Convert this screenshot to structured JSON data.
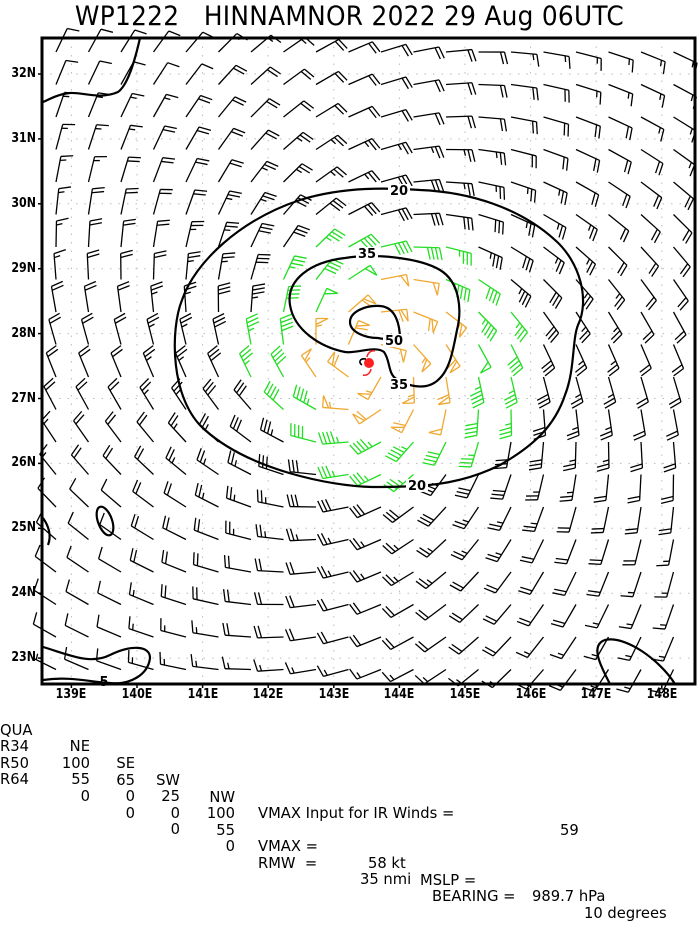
{
  "title": "WP1222   HINNAMNOR 2022 29 Aug 06UTC",
  "chart_data": {
    "type": "wind_barb_map",
    "title": "WP1222 HINNAMNOR 2022 29 Aug 06UTC",
    "storm_id": "WP1222",
    "storm_name": "HINNAMNOR",
    "year": 2022,
    "date": "29 Aug",
    "time": "06UTC",
    "xlabel": "Longitude",
    "ylabel": "Latitude",
    "x_ticks": [
      "139E",
      "140E",
      "141E",
      "142E",
      "143E",
      "144E",
      "145E",
      "146E",
      "147E",
      "148E"
    ],
    "y_ticks": [
      "32N",
      "31N",
      "30N",
      "29N",
      "28N",
      "27N",
      "26N",
      "25N",
      "24N",
      "23N"
    ],
    "xlim": [
      138.54,
      148.52
    ],
    "ylim": [
      22.6,
      32.55
    ],
    "grid": "dotted",
    "storm_center": {
      "lon": 143.55,
      "lat": 27.55,
      "symbol": "tropical-storm-icon",
      "color": "#ff2020"
    },
    "contours": [
      {
        "level": 20,
        "label": "20"
      },
      {
        "level": 35,
        "label": "35"
      },
      {
        "level": 50,
        "label": "50"
      },
      {
        "level": 5,
        "label": "5"
      }
    ],
    "barb_colors": {
      "below_34kt": "#000000",
      "34_to_50kt": "#22dd22",
      "50_to_64kt": "#f0a830",
      "above_64kt": "#f07020"
    }
  },
  "axes": {
    "y_labels": [
      {
        "text": "32N",
        "lat": 32
      },
      {
        "text": "31N",
        "lat": 31
      },
      {
        "text": "30N",
        "lat": 30
      },
      {
        "text": "29N",
        "lat": 29
      },
      {
        "text": "28N",
        "lat": 28
      },
      {
        "text": "27N",
        "lat": 27
      },
      {
        "text": "26N",
        "lat": 26
      },
      {
        "text": "25N",
        "lat": 25
      },
      {
        "text": "24N",
        "lat": 24
      },
      {
        "text": "23N",
        "lat": 23
      }
    ],
    "x_labels": [
      {
        "text": "139E",
        "lon": 139
      },
      {
        "text": "140E",
        "lon": 140
      },
      {
        "text": "141E",
        "lon": 141
      },
      {
        "text": "142E",
        "lon": 142
      },
      {
        "text": "143E",
        "lon": 143
      },
      {
        "text": "144E",
        "lon": 144
      },
      {
        "text": "145E",
        "lon": 145
      },
      {
        "text": "146E",
        "lon": 146
      },
      {
        "text": "147E",
        "lon": 147
      },
      {
        "text": "148E",
        "lon": 148
      }
    ]
  },
  "info": {
    "header": {
      "qua": "QUA",
      "ne": "NE",
      "se": "SE",
      "sw": "SW",
      "nw": "NW"
    },
    "r34": {
      "label": "R34",
      "ne": "100",
      "se": "65",
      "sw": "25",
      "nw": "100"
    },
    "r50": {
      "label": "R50",
      "ne": "55",
      "se": "0",
      "sw": "0",
      "nw": "55"
    },
    "r64": {
      "label": "R64",
      "ne": "0",
      "se": "0",
      "sw": "0",
      "nw": "0"
    },
    "vmax_input_text": "VMAX Input for IR Winds =",
    "vmax_input_value": "59",
    "vmax_text": "VMAX =",
    "vmax_value": "58 kt",
    "mslp_text": "MSLP =",
    "mslp_value": "989.7 hPa",
    "rmw_text": "RMW  =",
    "rmw_value": "35 nmi",
    "bearing_text": "BEARING =",
    "bearing_value": "10 degrees"
  }
}
